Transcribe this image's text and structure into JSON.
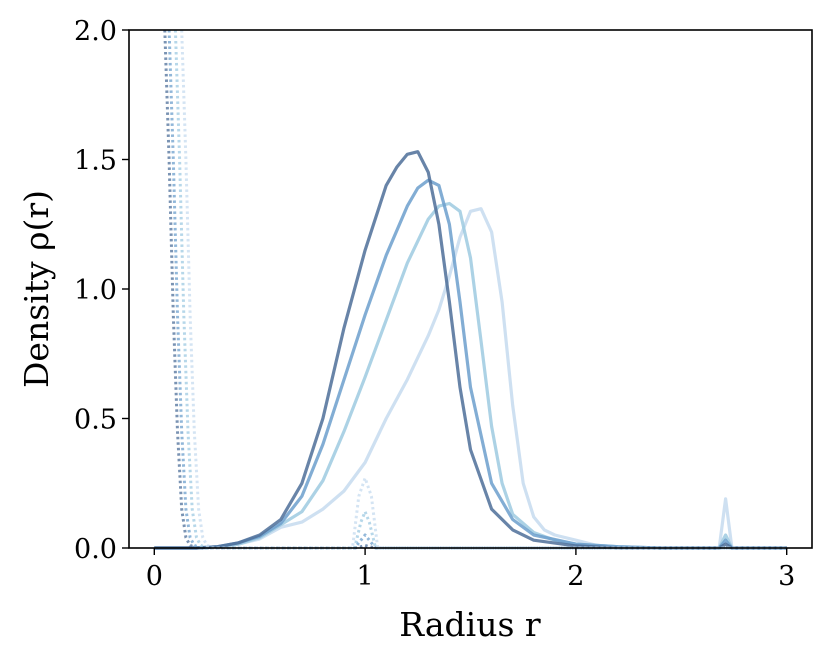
{
  "chart_data": {
    "type": "line",
    "title": "",
    "xlabel": "Radius r",
    "ylabel": "Density ρ(r)",
    "xlim": [
      -0.12,
      3.12
    ],
    "ylim": [
      0,
      2.0
    ],
    "xticks": [
      0,
      1,
      2,
      3
    ],
    "xtick_labels": [
      "0",
      "1",
      "2",
      "3"
    ],
    "yticks": [
      0.0,
      0.5,
      1.0,
      1.5,
      2.0
    ],
    "ytick_labels": [
      "0.0",
      "0.5",
      "1.0",
      "1.5",
      "2.0"
    ],
    "grid": false,
    "legend": "none",
    "series": [
      {
        "style": "solid",
        "color": "#c6dbef",
        "x": [
          0.0,
          0.2,
          0.3,
          0.4,
          0.5,
          0.6,
          0.7,
          0.8,
          0.9,
          1.0,
          1.1,
          1.2,
          1.3,
          1.35,
          1.4,
          1.45,
          1.5,
          1.55,
          1.6,
          1.65,
          1.7,
          1.75,
          1.8,
          1.85,
          1.9,
          2.0,
          2.1,
          2.2,
          2.4,
          2.6,
          2.68,
          2.71,
          2.74,
          2.8,
          3.0
        ],
        "y": [
          0.0,
          0.0,
          0.005,
          0.015,
          0.035,
          0.08,
          0.1,
          0.15,
          0.22,
          0.33,
          0.5,
          0.65,
          0.82,
          0.92,
          1.05,
          1.2,
          1.3,
          1.31,
          1.22,
          0.95,
          0.55,
          0.25,
          0.12,
          0.07,
          0.05,
          0.03,
          0.01,
          0.005,
          0.0,
          0.0,
          0.0,
          0.19,
          0.0,
          0.0,
          0.0
        ]
      },
      {
        "style": "solid",
        "color": "#9ecae1",
        "x": [
          0.0,
          0.2,
          0.3,
          0.4,
          0.5,
          0.6,
          0.7,
          0.8,
          0.9,
          1.0,
          1.1,
          1.2,
          1.3,
          1.35,
          1.4,
          1.45,
          1.5,
          1.55,
          1.6,
          1.65,
          1.7,
          1.8,
          1.9,
          2.0,
          2.2,
          2.4,
          2.68,
          2.71,
          2.74,
          3.0
        ],
        "y": [
          0.0,
          0.0,
          0.005,
          0.015,
          0.04,
          0.09,
          0.14,
          0.26,
          0.45,
          0.66,
          0.88,
          1.1,
          1.27,
          1.32,
          1.33,
          1.3,
          1.12,
          0.8,
          0.47,
          0.25,
          0.13,
          0.06,
          0.03,
          0.015,
          0.005,
          0.0,
          0.0,
          0.05,
          0.0,
          0.0
        ]
      },
      {
        "style": "solid",
        "color": "#6c9fcc",
        "x": [
          0.0,
          0.2,
          0.3,
          0.4,
          0.5,
          0.6,
          0.7,
          0.8,
          0.9,
          1.0,
          1.1,
          1.2,
          1.25,
          1.3,
          1.35,
          1.4,
          1.45,
          1.5,
          1.6,
          1.7,
          1.8,
          2.0,
          2.2,
          2.4,
          2.68,
          2.71,
          2.74,
          3.0
        ],
        "y": [
          0.0,
          0.0,
          0.005,
          0.02,
          0.045,
          0.095,
          0.2,
          0.4,
          0.65,
          0.9,
          1.13,
          1.32,
          1.39,
          1.42,
          1.4,
          1.25,
          0.95,
          0.62,
          0.25,
          0.11,
          0.05,
          0.015,
          0.005,
          0.0,
          0.0,
          0.03,
          0.0,
          0.0
        ]
      },
      {
        "style": "solid",
        "color": "#4d6f99",
        "x": [
          0.0,
          0.2,
          0.3,
          0.4,
          0.5,
          0.6,
          0.7,
          0.8,
          0.9,
          1.0,
          1.1,
          1.15,
          1.2,
          1.25,
          1.3,
          1.35,
          1.4,
          1.45,
          1.5,
          1.6,
          1.7,
          1.8,
          2.0,
          2.2,
          2.4,
          2.68,
          2.71,
          2.74,
          3.0
        ],
        "y": [
          0.0,
          0.0,
          0.005,
          0.02,
          0.05,
          0.11,
          0.25,
          0.5,
          0.85,
          1.15,
          1.4,
          1.47,
          1.52,
          1.53,
          1.45,
          1.25,
          0.95,
          0.62,
          0.38,
          0.15,
          0.07,
          0.03,
          0.008,
          0.0,
          0.0,
          0.0,
          0.015,
          0.0,
          0.0
        ]
      },
      {
        "style": "dotted",
        "color": "#4d6f99",
        "x": [
          0.05,
          0.07,
          0.09,
          0.11,
          0.13,
          0.15,
          0.17,
          0.2,
          0.5,
          0.95,
          0.98,
          1.0,
          1.02,
          1.05,
          3.0
        ],
        "y": [
          2.0,
          1.5,
          0.9,
          0.45,
          0.15,
          0.04,
          0.01,
          0.0,
          0.0,
          0.0,
          0.005,
          0.01,
          0.005,
          0.0,
          0.0
        ]
      },
      {
        "style": "dotted",
        "color": "#6c9fcc",
        "x": [
          0.07,
          0.09,
          0.11,
          0.13,
          0.15,
          0.17,
          0.19,
          0.22,
          0.5,
          0.95,
          0.98,
          1.0,
          1.02,
          1.05,
          3.0
        ],
        "y": [
          2.0,
          1.5,
          0.9,
          0.45,
          0.15,
          0.04,
          0.01,
          0.0,
          0.0,
          0.0,
          0.03,
          0.05,
          0.03,
          0.0,
          0.0
        ]
      },
      {
        "style": "dotted",
        "color": "#9ecae1",
        "x": [
          0.1,
          0.12,
          0.14,
          0.16,
          0.18,
          0.2,
          0.22,
          0.25,
          0.5,
          0.95,
          0.98,
          1.0,
          1.02,
          1.05,
          3.0
        ],
        "y": [
          2.0,
          1.5,
          0.9,
          0.45,
          0.15,
          0.04,
          0.01,
          0.0,
          0.0,
          0.0,
          0.1,
          0.14,
          0.1,
          0.0,
          0.0
        ]
      },
      {
        "style": "dotted",
        "color": "#c6dbef",
        "x": [
          0.13,
          0.15,
          0.17,
          0.19,
          0.21,
          0.23,
          0.25,
          0.28,
          0.5,
          0.94,
          0.97,
          1.0,
          1.03,
          1.06,
          3.0
        ],
        "y": [
          2.0,
          1.5,
          0.9,
          0.45,
          0.15,
          0.04,
          0.01,
          0.0,
          0.0,
          0.0,
          0.2,
          0.27,
          0.2,
          0.0,
          0.0
        ]
      }
    ]
  }
}
